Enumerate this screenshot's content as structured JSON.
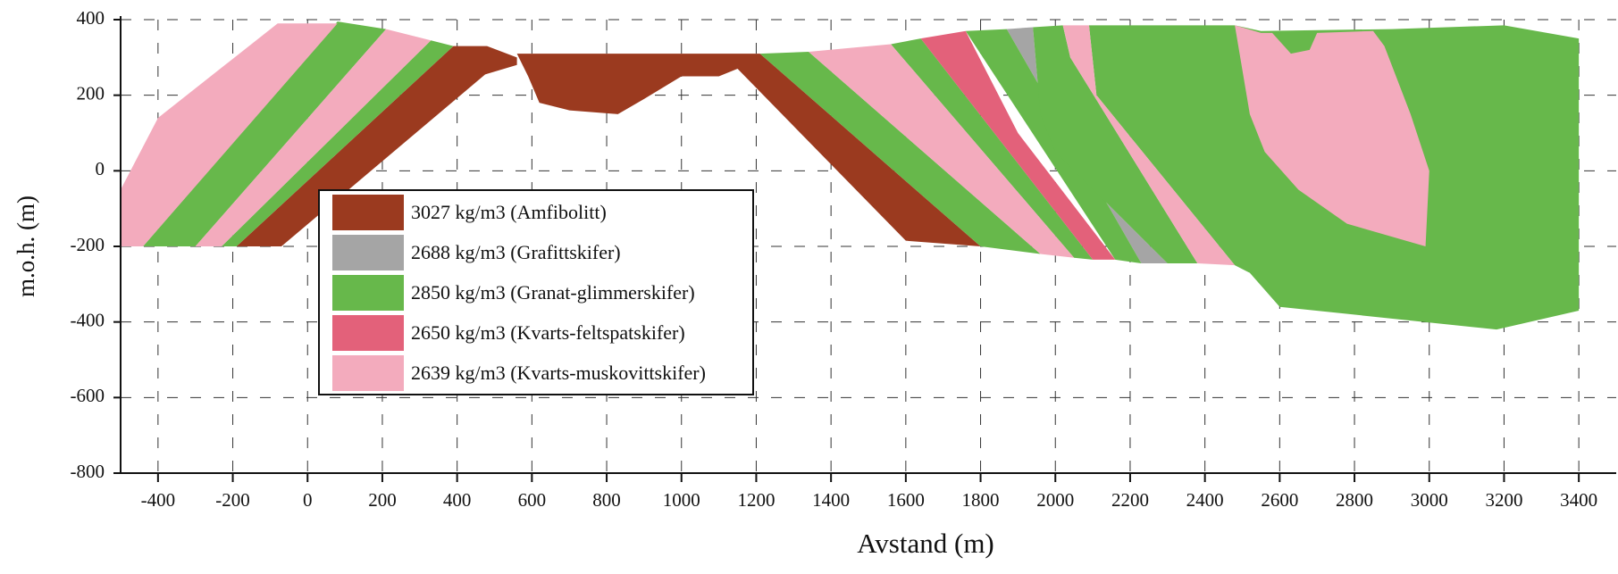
{
  "chart_data": {
    "type": "polygon",
    "xlabel": "Avstand (m)",
    "ylabel": "m.o.h. (m)",
    "xlim": [
      -500,
      3500
    ],
    "ylim": [
      -800,
      400
    ],
    "xticks": [
      -400,
      -200,
      0,
      200,
      400,
      600,
      800,
      1000,
      1200,
      1400,
      1600,
      1800,
      2000,
      2200,
      2400,
      2600,
      2800,
      3000,
      3200,
      3400
    ],
    "yticks": [
      -800,
      -600,
      -400,
      -200,
      0,
      200,
      400
    ],
    "grid": true,
    "legend": "lower-left",
    "series": [
      {
        "name": "3027 kg/m3 (Amfibolitt)",
        "color": "#9b3a1f",
        "shapes": [
          {
            "x": [
              -190,
              390,
              480,
              560,
              560,
              475,
              -70
            ],
            "y": [
              -200,
              330,
              330,
              300,
              280,
              255,
              -200
            ]
          },
          {
            "x": [
              560,
              1210,
              1800,
              1600,
              1150,
              1100,
              1000,
              900,
              830,
              700,
              620,
              590
            ],
            "y": [
              310,
              310,
              -200,
              -185,
              270,
              250,
              250,
              190,
              150,
              160,
              180,
              250
            ]
          }
        ]
      },
      {
        "name": "2688 kg/m3 (Grafittskifer)",
        "color": "#a5a5a5",
        "shapes": [
          {
            "x": [
              1870,
              1940,
              1960,
              2000,
              2300,
              2230
            ],
            "y": [
              375,
              380,
              150,
              50,
              -245,
              -245
            ]
          }
        ]
      },
      {
        "name": "2850 kg/m3 (Granat-glimmerskifer)",
        "color": "#67b84b",
        "shapes": [
          {
            "x": [
              2090,
              2480,
              2550,
              2900,
              3200,
              3400,
              3400,
              3180,
              2600,
              2520,
              2480,
              2110
            ],
            "y": [
              385,
              385,
              370,
              375,
              385,
              350,
              -370,
              -420,
              -360,
              -270,
              -250,
              200
            ]
          },
          {
            "x": [
              -440,
              80,
              210,
              -300
            ],
            "y": [
              -200,
              395,
              375,
              -200
            ]
          },
          {
            "x": [
              -230,
              330,
              390,
              -190
            ],
            "y": [
              -200,
              345,
              330,
              -200
            ]
          },
          {
            "x": [
              1210,
              1340,
              1960,
              1800
            ],
            "y": [
              310,
              315,
              -220,
              -200
            ]
          },
          {
            "x": [
              1560,
              1640,
              2100,
              2050
            ],
            "y": [
              335,
              350,
              -235,
              -230
            ]
          },
          {
            "x": [
              1760,
              1870,
              2230,
              2160
            ],
            "y": [
              370,
              375,
              -245,
              -235
            ]
          },
          {
            "x": [
              1940,
              2020,
              2040,
              2380,
              2300,
              2000,
              1960
            ],
            "y": [
              380,
              385,
              300,
              -245,
              -245,
              50,
              150
            ]
          }
        ]
      },
      {
        "name": "2650 kg/m3 (Kvarts-feltspatskifer)",
        "color": "#e3617a",
        "shapes": [
          {
            "x": [
              1640,
              1760,
              1900,
              2160,
              2100
            ],
            "y": [
              350,
              370,
              100,
              -235,
              -235
            ]
          }
        ]
      },
      {
        "name": "2639 kg/m3 (Kvarts-muskovittskifer)",
        "color": "#f3abbd",
        "shapes": [
          {
            "x": [
              -500,
              -500,
              -400,
              -80,
              80,
              -440
            ],
            "y": [
              -200,
              -50,
              140,
              390,
              390,
              -200
            ]
          },
          {
            "x": [
              -300,
              210,
              330,
              -230
            ],
            "y": [
              -200,
              375,
              345,
              -200
            ]
          },
          {
            "x": [
              1340,
              1560,
              2050,
              1960
            ],
            "y": [
              315,
              335,
              -230,
              -220
            ]
          },
          {
            "x": [
              2020,
              2090,
              2110,
              2480,
              2380,
              2040
            ],
            "y": [
              385,
              385,
              200,
              -250,
              -245,
              300
            ]
          },
          {
            "x": [
              2480,
              2550,
              2580,
              2630,
              2680,
              2700,
              2850,
              2880,
              2950,
              3000,
              2990,
              2780,
              2650,
              2560,
              2520
            ],
            "y": [
              385,
              365,
              365,
              310,
              320,
              365,
              370,
              330,
              150,
              0,
              -200,
              -140,
              -50,
              50,
              150
            ]
          }
        ]
      }
    ]
  }
}
